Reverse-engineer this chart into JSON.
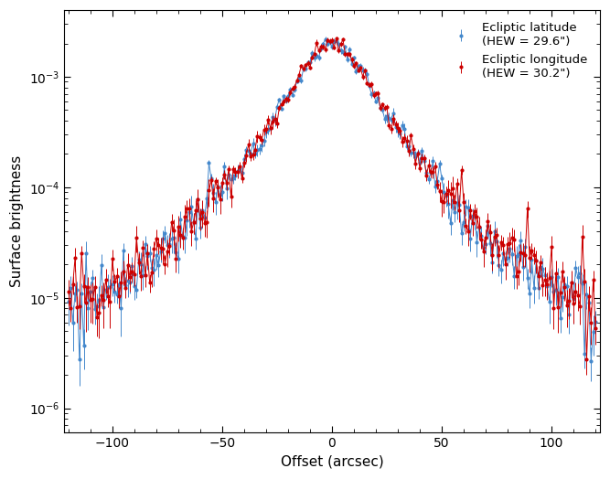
{
  "xlabel": "Offset (arcsec)",
  "ylabel": "Surface brightness",
  "xlim": [
    -122,
    122
  ],
  "ylim": [
    6e-07,
    0.004
  ],
  "lon_color": "#cc0000",
  "lat_color": "#4488cc",
  "lon_label": "Ecliptic longitude\n(HEW = 30.2\")",
  "lat_label": "Ecliptic latitude\n(HEW = 29.6\")",
  "hew_lon": 30.2,
  "hew_lat": 29.6,
  "marker_size": 2.0,
  "line_width": 0.7,
  "x_ticks": [
    -100,
    -50,
    0,
    50,
    100
  ],
  "noise_seed_lon": 42,
  "noise_seed_lat": 77,
  "background_color": "#ffffff",
  "n_points": 241,
  "peak_value": 0.002
}
